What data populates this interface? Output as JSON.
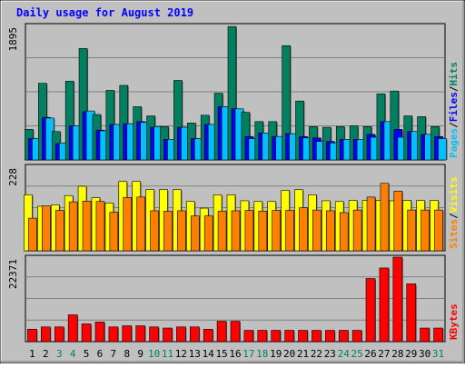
{
  "chart_data": {
    "title": "Daily usage for August 2019",
    "days": [
      "1",
      "2",
      "3",
      "4",
      "5",
      "6",
      "7",
      "8",
      "9",
      "10",
      "11",
      "12",
      "13",
      "14",
      "15",
      "16",
      "17",
      "18",
      "19",
      "20",
      "21",
      "22",
      "23",
      "24",
      "25",
      "26",
      "27",
      "28",
      "29",
      "30",
      "31"
    ],
    "weekend_days": [
      "3",
      "4",
      "10",
      "11",
      "17",
      "18",
      "24",
      "25",
      "31"
    ],
    "panels": [
      {
        "type": "bar",
        "max_label": "1895",
        "ymax": 1895,
        "series_labels": [
          "Pages",
          "Files",
          "Hits"
        ],
        "series": [
          {
            "name": "Hits",
            "color": "#008060",
            "values": [
              430,
              1080,
              400,
              1110,
              1570,
              640,
              980,
              1050,
              750,
              620,
              470,
              1120,
              520,
              630,
              940,
              1880,
              670,
              540,
              540,
              1610,
              830,
              470,
              460,
              470,
              480,
              470,
              930,
              970,
              620,
              610,
              470
            ]
          },
          {
            "name": "Files",
            "color": "#0000ff",
            "values": [
              300,
              600,
              230,
              480,
              680,
              420,
              500,
              510,
              540,
              460,
              290,
              460,
              300,
              500,
              750,
              720,
              330,
              380,
              330,
              370,
              330,
              310,
              260,
              290,
              290,
              360,
              540,
              430,
              400,
              360,
              330
            ]
          },
          {
            "name": "Pages",
            "color": "#00c0ff",
            "values": [
              300,
              590,
              240,
              480,
              690,
              410,
              500,
              510,
              530,
              470,
              290,
              460,
              300,
              500,
              750,
              720,
              300,
              380,
              330,
              370,
              310,
              260,
              240,
              290,
              290,
              320,
              540,
              320,
              400,
              360,
              300
            ]
          }
        ]
      },
      {
        "type": "bar",
        "max_label": "228",
        "ymax": 228,
        "series_labels": [
          "Sites",
          "Visits"
        ],
        "series": [
          {
            "name": "Visits",
            "color": "#ffff00",
            "values": [
              151,
              120,
              124,
              149,
              174,
              143,
              129,
              187,
              187,
              165,
              165,
              165,
              133,
              115,
              151,
              151,
              135,
              133,
              133,
              163,
              165,
              151,
              135,
              133,
              136,
              136,
              136,
              135,
              136,
              136,
              136
            ]
          },
          {
            "name": "Sites",
            "color": "#ff8000",
            "values": [
              88,
              121,
              109,
              132,
              134,
              133,
              104,
              144,
              145,
              108,
              107,
              108,
              94,
              94,
              107,
              108,
              109,
              107,
              109,
              109,
              116,
              110,
              108,
              103,
              110,
              145,
              182,
              161,
              110,
              110,
              110
            ]
          }
        ]
      },
      {
        "type": "bar",
        "max_label": "22371",
        "ymax": 22371,
        "series_labels": [
          "KBytes"
        ],
        "series": [
          {
            "name": "KBytes",
            "color": "#ff0000",
            "values": [
              3300,
              3900,
              3900,
              7100,
              4700,
              5200,
              3900,
              4200,
              4200,
              3900,
              3600,
              3900,
              3900,
              3300,
              5400,
              5400,
              3000,
              3000,
              3000,
              3000,
              3000,
              3000,
              3000,
              3000,
              3000,
              16700,
              19500,
              22371,
              15300,
              3600,
              3600
            ]
          }
        ]
      }
    ]
  },
  "colors": {
    "background": "#c0c0c0",
    "title": "#0000ff",
    "axis_text": "#000000",
    "weekend_text": "#008060",
    "pages": "#00c0ff",
    "files": "#0000ff",
    "hits": "#008060",
    "sites": "#ff8000",
    "visits": "#ffff00",
    "kbytes": "#ff0000"
  }
}
